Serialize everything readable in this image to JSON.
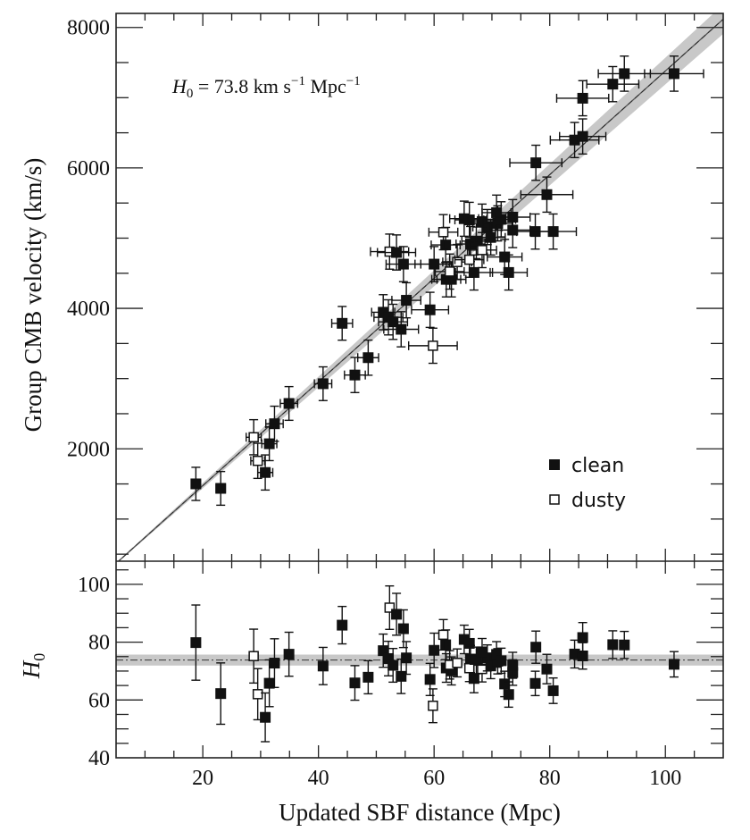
{
  "chart_data": [
    {
      "type": "scatter",
      "panel": "top",
      "xlabel": "Updated SBF distance (Mpc)",
      "ylabel": "Group CMB velocity (km/s)",
      "xlim": [
        5,
        110
      ],
      "ylim": [
        400,
        8200
      ],
      "x_ticks": [
        20,
        40,
        60,
        80,
        100
      ],
      "y_ticks": [
        2000,
        4000,
        6000,
        8000
      ],
      "grid": false,
      "annotation": {
        "symbol": "H",
        "subscript": "0",
        "text": " = 73.8 km s",
        "exp1": "−1",
        "text2": " Mpc",
        "exp2": "−1"
      },
      "fit": {
        "H0": 73.8,
        "band": [
          71.9,
          75.7
        ],
        "color": "#c8c8c8"
      },
      "legend": {
        "placement": "bottom-right",
        "entries": [
          {
            "label": "clean",
            "marker": "filled-square"
          },
          {
            "label": "dusty",
            "marker": "open-square"
          }
        ]
      },
      "points": [
        {
          "d": 18.8,
          "v": 1501,
          "ed": 0.8,
          "ev": 236,
          "dusty": false
        },
        {
          "d": 23.1,
          "v": 1437,
          "ed": 0.8,
          "ev": 240,
          "dusty": false
        },
        {
          "d": 28.8,
          "v": 2165,
          "ed": 1.3,
          "ev": 250,
          "dusty": true
        },
        {
          "d": 29.5,
          "v": 1829,
          "ed": 1.2,
          "ev": 250,
          "dusty": true
        },
        {
          "d": 30.8,
          "v": 1663,
          "ed": 1.3,
          "ev": 250,
          "dusty": false
        },
        {
          "d": 31.5,
          "v": 2072,
          "ed": 1.3,
          "ev": 240,
          "dusty": false
        },
        {
          "d": 32.4,
          "v": 2357,
          "ed": 1.5,
          "ev": 250,
          "dusty": false
        },
        {
          "d": 34.9,
          "v": 2646,
          "ed": 1.5,
          "ev": 240,
          "dusty": false
        },
        {
          "d": 40.8,
          "v": 2927,
          "ed": 1.5,
          "ev": 240,
          "dusty": false
        },
        {
          "d": 44.1,
          "v": 3787,
          "ed": 1.8,
          "ev": 240,
          "dusty": false
        },
        {
          "d": 46.3,
          "v": 3051,
          "ed": 1.8,
          "ev": 250,
          "dusty": false
        },
        {
          "d": 48.6,
          "v": 3298,
          "ed": 1.8,
          "ev": 250,
          "dusty": false
        },
        {
          "d": 51.2,
          "v": 3945,
          "ed": 2.0,
          "ev": 250,
          "dusty": false
        },
        {
          "d": 52.1,
          "v": 3872,
          "ed": 2.5,
          "ev": 250,
          "dusty": false
        },
        {
          "d": 52.9,
          "v": 3808,
          "ed": 2.5,
          "ev": 250,
          "dusty": false
        },
        {
          "d": 54.3,
          "v": 3702,
          "ed": 3.0,
          "ev": 250,
          "dusty": false
        },
        {
          "d": 55.2,
          "v": 4115,
          "ed": 2.5,
          "ev": 250,
          "dusty": false
        },
        {
          "d": 52.3,
          "v": 4808,
          "ed": 3.3,
          "ev": 250,
          "dusty": true
        },
        {
          "d": 53.5,
          "v": 4796,
          "ed": 3.3,
          "ev": 250,
          "dusty": false
        },
        {
          "d": 54.7,
          "v": 4630,
          "ed": 3.0,
          "ev": 250,
          "dusty": false
        },
        {
          "d": 59.3,
          "v": 3979,
          "ed": 3.2,
          "ev": 250,
          "dusty": false
        },
        {
          "d": 59.8,
          "v": 3468,
          "ed": 4.2,
          "ev": 250,
          "dusty": true
        },
        {
          "d": 60.0,
          "v": 4630,
          "ed": 3.3,
          "ev": 250,
          "dusty": false
        },
        {
          "d": 62.1,
          "v": 4413,
          "ed": 2.5,
          "ev": 250,
          "dusty": false
        },
        {
          "d": 63.0,
          "v": 4413,
          "ed": 2.5,
          "ev": 250,
          "dusty": false
        },
        {
          "d": 62.0,
          "v": 4903,
          "ed": 2.5,
          "ev": 250,
          "dusty": false
        },
        {
          "d": 61.6,
          "v": 5085,
          "ed": 2.5,
          "ev": 250,
          "dusty": true
        },
        {
          "d": 62.7,
          "v": 4524,
          "ed": 2.5,
          "ev": 250,
          "dusty": true
        },
        {
          "d": 64.0,
          "v": 4660,
          "ed": 2.5,
          "ev": 250,
          "dusty": true
        },
        {
          "d": 65.2,
          "v": 5277,
          "ed": 2.5,
          "ev": 250,
          "dusty": false
        },
        {
          "d": 66.1,
          "v": 5260,
          "ed": 2.5,
          "ev": 250,
          "dusty": false
        },
        {
          "d": 66.3,
          "v": 4916,
          "ed": 2.5,
          "ev": 250,
          "dusty": false
        },
        {
          "d": 67.3,
          "v": 4958,
          "ed": 2.5,
          "ev": 250,
          "dusty": false
        },
        {
          "d": 68.3,
          "v": 4830,
          "ed": 2.5,
          "ev": 250,
          "dusty": true
        },
        {
          "d": 66.1,
          "v": 4693,
          "ed": 2.5,
          "ev": 250,
          "dusty": true
        },
        {
          "d": 66.9,
          "v": 4511,
          "ed": 3.2,
          "ev": 250,
          "dusty": false
        },
        {
          "d": 69.2,
          "v": 5158,
          "ed": 2.5,
          "ev": 250,
          "dusty": false
        },
        {
          "d": 68.3,
          "v": 5235,
          "ed": 2.5,
          "ev": 250,
          "dusty": false
        },
        {
          "d": 69.8,
          "v": 5010,
          "ed": 2.5,
          "ev": 250,
          "dusty": false
        },
        {
          "d": 71.0,
          "v": 5210,
          "ed": 2.5,
          "ev": 250,
          "dusty": false
        },
        {
          "d": 70.8,
          "v": 5363,
          "ed": 2.5,
          "ev": 250,
          "dusty": false
        },
        {
          "d": 71.6,
          "v": 5268,
          "ed": 2.5,
          "ev": 250,
          "dusty": false
        },
        {
          "d": 72.2,
          "v": 4732,
          "ed": 3.0,
          "ev": 250,
          "dusty": false
        },
        {
          "d": 72.9,
          "v": 4511,
          "ed": 3.2,
          "ev": 250,
          "dusty": false
        },
        {
          "d": 73.6,
          "v": 5115,
          "ed": 3.0,
          "ev": 250,
          "dusty": false
        },
        {
          "d": 73.6,
          "v": 5299,
          "ed": 3.0,
          "ev": 250,
          "dusty": false
        },
        {
          "d": 77.5,
          "v": 5094,
          "ed": 3.2,
          "ev": 250,
          "dusty": false
        },
        {
          "d": 80.6,
          "v": 5094,
          "ed": 4.0,
          "ev": 250,
          "dusty": false
        },
        {
          "d": 79.5,
          "v": 5620,
          "ed": 4.5,
          "ev": 250,
          "dusty": false
        },
        {
          "d": 77.6,
          "v": 6073,
          "ed": 4.5,
          "ev": 250,
          "dusty": false
        },
        {
          "d": 84.3,
          "v": 6397,
          "ed": 4.2,
          "ev": 250,
          "dusty": false
        },
        {
          "d": 85.7,
          "v": 6448,
          "ed": 4.0,
          "ev": 250,
          "dusty": false
        },
        {
          "d": 85.7,
          "v": 6992,
          "ed": 4.5,
          "ev": 250,
          "dusty": false
        },
        {
          "d": 90.9,
          "v": 7193,
          "ed": 4.5,
          "ev": 250,
          "dusty": false
        },
        {
          "d": 92.9,
          "v": 7342,
          "ed": 4.5,
          "ev": 250,
          "dusty": false
        },
        {
          "d": 101.5,
          "v": 7342,
          "ed": 5.1,
          "ev": 250,
          "dusty": false
        }
      ]
    },
    {
      "type": "scatter",
      "panel": "bottom",
      "ylabel": {
        "symbol": "H",
        "subscript": "0"
      },
      "xlim": [
        5,
        110
      ],
      "ylim": [
        40,
        108
      ],
      "y_ticks": [
        40,
        60,
        80,
        100
      ],
      "note": "H0 = v / d for each point above",
      "fit": {
        "H0": 73.8,
        "band": [
          71.9,
          75.7
        ]
      }
    }
  ]
}
